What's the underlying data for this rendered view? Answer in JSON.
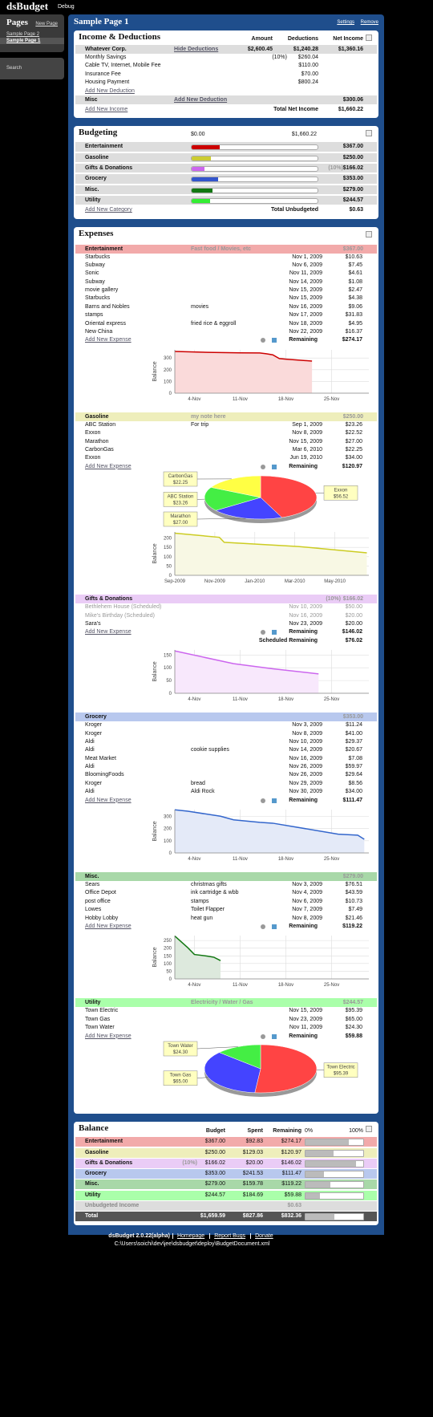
{
  "app": {
    "title": "dsBudget",
    "debug": "Debug"
  },
  "sidebar": {
    "heading": "Pages",
    "new_page": "New Page",
    "pages": [
      "Sample Page 2",
      "Sample Page 1"
    ],
    "search": "Search"
  },
  "page": {
    "title": "Sample Page 1",
    "settings": "Settings",
    "remove": "Remove"
  },
  "income": {
    "title": "Income & Deductions",
    "headers": [
      "Amount",
      "Deductions",
      "Net Income"
    ],
    "sources": [
      {
        "name": "Whatever Corp.",
        "toggle": "Hide Deductions",
        "amount": "$2,600.45",
        "deductions": "$1,240.28",
        "net": "$1,360.16",
        "deduction_items": [
          {
            "name": "Monthly Savings",
            "pct": "(10%)",
            "amount": "$260.04"
          },
          {
            "name": "Cable TV, Internet, Mobile Fee",
            "amount": "$110.00"
          },
          {
            "name": "Insurance Fee",
            "amount": "$70.00"
          },
          {
            "name": "Housing Payment",
            "amount": "$800.24"
          }
        ],
        "add": "Add New Deduction"
      },
      {
        "name": "Misc",
        "add": "Add New Deduction",
        "net": "$300.06"
      }
    ],
    "add": "Add New Income",
    "total_label": "Total Net Income",
    "total": "$1,660.22"
  },
  "budgeting": {
    "title": "Budgeting",
    "scale": [
      {
        "value": 0,
        "label": "$0.00"
      },
      {
        "value": 1660.22,
        "label": "$1,660.22"
      }
    ],
    "rows": [
      {
        "name": "Entertainment",
        "color": "#cc0000",
        "value": 367,
        "value_label": "$367.00"
      },
      {
        "name": "Gasoline",
        "color": "#cccc33",
        "value": 250,
        "value_label": "$250.00"
      },
      {
        "name": "Gifts & Donations",
        "color": "#cc66ee",
        "pct": "(10%)",
        "value": 166.02,
        "value_label": "$166.02"
      },
      {
        "name": "Grocery",
        "color": "#3355cc",
        "value": 353,
        "value_label": "$353.00"
      },
      {
        "name": "Misc.",
        "color": "#117711",
        "value": 279,
        "value_label": "$279.00"
      },
      {
        "name": "Utility",
        "color": "#33ee33",
        "value": 244.57,
        "value_label": "$244.57"
      }
    ],
    "add": "Add New Category",
    "total_label": "Total Unbudgeted",
    "total": "$0.63"
  },
  "expenses": {
    "title": "Expenses",
    "add": "Add New Expense",
    "remaining_label": "Remaining",
    "scheduled_label": "Scheduled Remaining",
    "categories": [
      {
        "name": "Entertainment",
        "note": "Fast food / Movies, etc",
        "budget": "$367.00",
        "color": "#f2aaaa",
        "items": [
          {
            "name": "Starbucks",
            "date": "Nov 1, 2009",
            "amount": "$10.63"
          },
          {
            "name": "Subway",
            "date": "Nov 6, 2009",
            "amount": "$7.45"
          },
          {
            "name": "Sonic",
            "date": "Nov 11, 2009",
            "amount": "$4.61"
          },
          {
            "name": "Subway",
            "date": "Nov 14, 2009",
            "amount": "$1.08"
          },
          {
            "name": "movie gallery",
            "date": "Nov 15, 2009",
            "amount": "$2.47"
          },
          {
            "name": "Starbucks",
            "date": "Nov 15, 2009",
            "amount": "$4.38"
          },
          {
            "name": "Barns and Nobles",
            "note": "movies",
            "date": "Nov 16, 2009",
            "amount": "$9.06"
          },
          {
            "name": "stamps",
            "date": "Nov 17, 2009",
            "amount": "$31.83"
          },
          {
            "name": "Oriental express",
            "note": "fried rice & eggroll",
            "date": "Nov 18, 2009",
            "amount": "$4.95"
          },
          {
            "name": "New China",
            "date": "Nov 22, 2009",
            "amount": "$16.37"
          }
        ],
        "remaining": "$274.17",
        "charts": [
          {
            "type": "line",
            "y_label": "Balance",
            "color": "#cc0000",
            "fill": "#fadada",
            "x": [
              1,
              6,
              11,
              14,
              15,
              16,
              17,
              18,
              22
            ],
            "values": [
              356.37,
              348.92,
              344.31,
              343.23,
              336.38,
              327.32,
              295.49,
              290.54,
              274.17
            ],
            "xlim": [
              1,
              30.7
            ],
            "xticks": [
              {
                "value": 4,
                "label": "4-Nov"
              },
              {
                "value": 11,
                "label": "11-Nov"
              },
              {
                "value": 18,
                "label": "18-Nov"
              },
              {
                "value": 25,
                "label": "25-Nov"
              }
            ],
            "ylim": [
              0,
              370
            ],
            "yticks": [
              0,
              100,
              200,
              300
            ]
          }
        ]
      },
      {
        "name": "Gasoline",
        "note": "my note here",
        "budget": "$250.00",
        "color": "#eeeebb",
        "items": [
          {
            "name": "ABC Station",
            "note": "For trip",
            "date": "Sep 1, 2009",
            "amount": "$23.26"
          },
          {
            "name": "Exxon",
            "date": "Nov 8, 2009",
            "amount": "$22.52"
          },
          {
            "name": "Marathon",
            "date": "Nov 15, 2009",
            "amount": "$27.00"
          },
          {
            "name": "CarbonGas",
            "date": "Mar 6, 2010",
            "amount": "$22.25"
          },
          {
            "name": "Exxon",
            "date": "Jun 19, 2010",
            "amount": "$34.00"
          }
        ],
        "remaining": "$120.97",
        "charts": [
          {
            "type": "pie",
            "labels": [
              "Exxon",
              "Marathon",
              "ABC Station",
              "CarbonGas"
            ],
            "values": [
              56.52,
              27.0,
              23.26,
              22.25
            ],
            "value_labels": [
              "$56.52",
              "$27.00",
              "$23.26",
              "$22.25"
            ],
            "colors": [
              "#ff4444",
              "#4444ff",
              "#44ee44",
              "#ffff44"
            ]
          },
          {
            "type": "line",
            "y_label": "Balance",
            "color": "#cccc22",
            "fill": "#f8f8e4",
            "x": [
              0,
              2.23,
              2.47,
              6.17,
              9.6
            ],
            "values": [
              226.74,
              204.22,
              177.22,
              154.97,
              120.97
            ],
            "xlim": [
              0,
              9.7
            ],
            "xticks": [
              {
                "value": 0,
                "label": "Sep-2009"
              },
              {
                "value": 2,
                "label": "Nov-2009"
              },
              {
                "value": 4,
                "label": "Jan-2010"
              },
              {
                "value": 6,
                "label": "Mar-2010"
              },
              {
                "value": 8,
                "label": "May-2010"
              }
            ],
            "ylim": [
              0,
              233
            ],
            "yticks": [
              0,
              50,
              100,
              150,
              200
            ]
          }
        ]
      },
      {
        "name": "Gifts & Donations",
        "pct": "(10%)",
        "budget": "$166.02",
        "color": "#eaccf6",
        "items": [
          {
            "name": "Bethlehem House (Scheduled)",
            "scheduled": true,
            "date": "Nov 10, 2009",
            "amount": "$50.00"
          },
          {
            "name": "Mike's Birthday (Scheduled)",
            "scheduled": true,
            "date": "Nov 16, 2009",
            "amount": "$20.00"
          },
          {
            "name": "Sara's",
            "date": "Nov 23, 2009",
            "amount": "$20.00"
          }
        ],
        "remaining": "$146.02",
        "scheduled_remaining": "$76.02",
        "charts": [
          {
            "type": "line",
            "y_label": "Balance",
            "color": "#cc66ee",
            "fill": "#f8e8fc",
            "x": [
              1,
              10,
              16,
              23
            ],
            "values": [
              166.02,
              116.02,
              96.02,
              76.02
            ],
            "xlim": [
              1,
              30.7
            ],
            "xticks": [
              {
                "value": 4,
                "label": "4-Nov"
              },
              {
                "value": 11,
                "label": "11-Nov"
              },
              {
                "value": 18,
                "label": "18-Nov"
              },
              {
                "value": 25,
                "label": "25-Nov"
              }
            ],
            "ylim": [
              0,
              170
            ],
            "yticks": [
              0,
              50,
              100,
              150
            ]
          }
        ]
      },
      {
        "name": "Grocery",
        "budget": "$353.00",
        "color": "#b8c8ee",
        "items": [
          {
            "name": "Kroger",
            "date": "Nov 3, 2009",
            "amount": "$11.24"
          },
          {
            "name": "Kroger",
            "date": "Nov 8, 2009",
            "amount": "$41.00"
          },
          {
            "name": "Aldi",
            "date": "Nov 10, 2009",
            "amount": "$29.37"
          },
          {
            "name": "Aldi",
            "note": "cookie supplies",
            "date": "Nov 14, 2009",
            "amount": "$20.67"
          },
          {
            "name": "Meat Market",
            "date": "Nov 16, 2009",
            "amount": "$7.08"
          },
          {
            "name": "Aldi",
            "date": "Nov 26, 2009",
            "amount": "$59.97"
          },
          {
            "name": "BloomingFoods",
            "date": "Nov 26, 2009",
            "amount": "$29.64"
          },
          {
            "name": "Kroger",
            "note": "bread",
            "date": "Nov 29, 2009",
            "amount": "$8.56"
          },
          {
            "name": "Aldi",
            "note": "Aldi Rock",
            "date": "Nov 30, 2009",
            "amount": "$34.00"
          }
        ],
        "remaining": "$111.47",
        "charts": [
          {
            "type": "line",
            "y_label": "Balance",
            "color": "#3366cc",
            "fill": "#e4eaf8",
            "x": [
              1,
              3,
              8,
              10,
              14,
              16,
              26,
              29,
              30
            ],
            "values": [
              353,
              341.76,
              300.76,
              271.39,
              250.72,
              243.64,
              154.03,
              145.47,
              111.47
            ],
            "xlim": [
              1,
              30.7
            ],
            "xticks": [
              {
                "value": 4,
                "label": "4-Nov"
              },
              {
                "value": 11,
                "label": "11-Nov"
              },
              {
                "value": 18,
                "label": "18-Nov"
              },
              {
                "value": 25,
                "label": "25-Nov"
              }
            ],
            "ylim": [
              0,
              355
            ],
            "yticks": [
              0,
              100,
              200,
              300
            ]
          }
        ]
      },
      {
        "name": "Misc.",
        "budget": "$279.00",
        "color": "#a8d8a8",
        "items": [
          {
            "name": "Sears",
            "note": "christmas gifts",
            "date": "Nov 3, 2009",
            "amount": "$76.51"
          },
          {
            "name": "Office Depot",
            "note": "ink cartridge & wbb",
            "date": "Nov 4, 2009",
            "amount": "$43.59"
          },
          {
            "name": "post office",
            "note": "stamps",
            "date": "Nov 6, 2009",
            "amount": "$10.73"
          },
          {
            "name": "Lowes",
            "note": "Toilet Flapper",
            "date": "Nov 7, 2009",
            "amount": "$7.49"
          },
          {
            "name": "Hobby Lobby",
            "note": "heat gun",
            "date": "Nov 8, 2009",
            "amount": "$21.46"
          }
        ],
        "remaining": "$119.22",
        "charts": [
          {
            "type": "line",
            "y_label": "Balance",
            "color": "#117711",
            "fill": "#dde9dd",
            "x": [
              1,
              3,
              4,
              6,
              7,
              8
            ],
            "values": [
              279,
              202.49,
              158.9,
              148.17,
              140.68,
              119.22
            ],
            "xlim": [
              1,
              30.7
            ],
            "xticks": [
              {
                "value": 4,
                "label": "4-Nov"
              },
              {
                "value": 11,
                "label": "11-Nov"
              },
              {
                "value": 18,
                "label": "18-Nov"
              },
              {
                "value": 25,
                "label": "25-Nov"
              }
            ],
            "ylim": [
              0,
              282
            ],
            "yticks": [
              0,
              50,
              100,
              150,
              200,
              250
            ]
          }
        ]
      },
      {
        "name": "Utility",
        "note": "Electricity / Water / Gas",
        "budget": "$244.57",
        "color": "#aaffaa",
        "items": [
          {
            "name": "Town Electric",
            "date": "Nov 15, 2009",
            "amount": "$95.39"
          },
          {
            "name": "Town Gas",
            "date": "Nov 23, 2009",
            "amount": "$65.00"
          },
          {
            "name": "Town Water",
            "date": "Nov 11, 2009",
            "amount": "$24.30"
          }
        ],
        "remaining": "$59.88",
        "charts": [
          {
            "type": "pie",
            "labels": [
              "Town Electric",
              "Town Gas",
              "Town Water"
            ],
            "values": [
              95.39,
              65.0,
              24.3
            ],
            "value_labels": [
              "$95.39",
              "$65.00",
              "$24.30"
            ],
            "colors": [
              "#ff4444",
              "#4444ff",
              "#44ee44"
            ]
          }
        ]
      }
    ]
  },
  "balance": {
    "title": "Balance",
    "headers": [
      "Budget",
      "Spent",
      "Remaining"
    ],
    "bar_scale": [
      {
        "value": 0,
        "label": "0%"
      },
      {
        "value": 100,
        "label": "100%"
      }
    ],
    "rows": [
      {
        "name": "Entertainment",
        "color": "#f2aaaa",
        "values": [
          367,
          92.83,
          274.17
        ],
        "value_labels": [
          "$367.00",
          "$92.83",
          "$274.17"
        ]
      },
      {
        "name": "Gasoline",
        "color": "#eeeebb",
        "values": [
          250,
          129.03,
          120.97
        ],
        "value_labels": [
          "$250.00",
          "$129.03",
          "$120.97"
        ]
      },
      {
        "name": "Gifts & Donations",
        "color": "#eaccf6",
        "pct": "(10%)",
        "values": [
          166.02,
          20,
          146.02
        ],
        "value_labels": [
          "$166.02",
          "$20.00",
          "$146.02"
        ]
      },
      {
        "name": "Grocery",
        "color": "#b8c8ee",
        "values": [
          353,
          241.53,
          111.47
        ],
        "value_labels": [
          "$353.00",
          "$241.53",
          "$111.47"
        ]
      },
      {
        "name": "Misc.",
        "color": "#a8d8a8",
        "values": [
          279,
          159.78,
          119.22
        ],
        "value_labels": [
          "$279.00",
          "$159.78",
          "$119.22"
        ]
      },
      {
        "name": "Utility",
        "color": "#aaffaa",
        "values": [
          244.57,
          184.69,
          59.88
        ],
        "value_labels": [
          "$244.57",
          "$184.69",
          "$59.88"
        ]
      }
    ],
    "unbudgeted": {
      "name": "Unbudgeted Income",
      "value": "$0.63"
    },
    "total": {
      "name": "Total",
      "values": [
        1659.59,
        827.86,
        832.36
      ],
      "value_labels": [
        "$1,659.59",
        "$827.86",
        "$832.36"
      ]
    }
  },
  "footer": {
    "version": "dsBudget 2.0.22(alpha)",
    "links": [
      "Homepage",
      "Report Bugs",
      "Donate"
    ],
    "path": "C:\\Users\\soichi\\dev\\jee\\dsbudget\\deploy\\BudgetDocument.xml"
  }
}
